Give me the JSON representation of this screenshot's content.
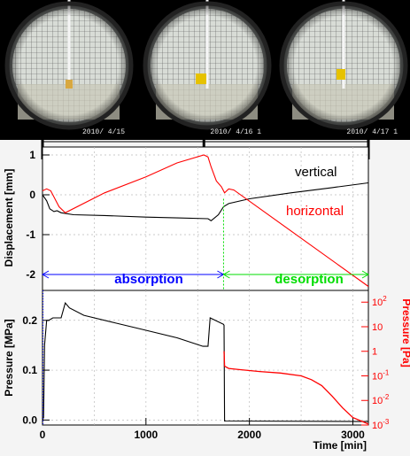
{
  "photos": [
    {
      "date": "2010/ 4/15"
    },
    {
      "date": "2010/ 4/16 1"
    },
    {
      "date": "2010/ 4/17 1"
    }
  ],
  "colors": {
    "vertical": "#000000",
    "horizontal": "#ff0000",
    "absorption": "#0000ff",
    "desorption": "#00dd00",
    "panel_bg": "#f4f4f4"
  },
  "chart_data": [
    {
      "type": "line",
      "ylabel": "Displacement [mm]",
      "ylim": [
        -2.4,
        1.2
      ],
      "xlim": [
        0,
        3150
      ],
      "yticks": [
        "1",
        "0",
        "-1",
        "-2"
      ],
      "grid": true,
      "series": [
        {
          "name": "vertical",
          "x": [
            0,
            40,
            70,
            110,
            140,
            180,
            300,
            600,
            1000,
            1300,
            1600,
            1630,
            1700,
            1750,
            1800,
            2000,
            2400,
            2800,
            3150
          ],
          "y": [
            0,
            -0.15,
            -0.35,
            -0.42,
            -0.4,
            -0.45,
            -0.5,
            -0.52,
            -0.56,
            -0.58,
            -0.6,
            -0.65,
            -0.5,
            -0.3,
            -0.22,
            -0.1,
            0.05,
            0.18,
            0.3
          ]
        },
        {
          "name": "horizontal",
          "x": [
            0,
            40,
            80,
            120,
            160,
            220,
            600,
            1000,
            1300,
            1560,
            1600,
            1630,
            1680,
            1730,
            1760,
            1800,
            1850,
            3150
          ],
          "y": [
            0.1,
            0.15,
            0.1,
            -0.1,
            -0.3,
            -0.45,
            0.05,
            0.45,
            0.8,
            1.0,
            0.95,
            0.7,
            0.35,
            0.2,
            0.05,
            0.15,
            0.12,
            -2.3
          ]
        }
      ],
      "annotations": [
        {
          "text": "absorption",
          "from": 0,
          "to": 1750,
          "y": -2.0
        },
        {
          "text": "desorption",
          "from": 1750,
          "to": 3150,
          "y": -2.0
        }
      ]
    },
    {
      "type": "line",
      "xlabel": "Time [min]",
      "ylabel": "Pressure [MPa]",
      "ylabel2": "Pressure [Pa]",
      "ylim": [
        -0.01,
        0.26
      ],
      "xlim": [
        0,
        3150
      ],
      "xticks": [
        "0",
        "1000",
        "2000",
        "3000"
      ],
      "yticks": [
        "0.2",
        "0.1",
        "0.0"
      ],
      "ylim2": [
        0.001,
        300
      ],
      "y2scale": "log",
      "yticks2": [
        "10^2",
        "10",
        "1",
        "10^-1",
        "10^-2",
        "10^-3"
      ],
      "grid": true,
      "series": [
        {
          "name": "pressure_mpa",
          "x": [
            0,
            10,
            20,
            40,
            60,
            100,
            180,
            220,
            260,
            400,
            700,
            1000,
            1300,
            1550,
            1600,
            1620,
            1750,
            1755,
            1760,
            3150
          ],
          "y": [
            0,
            0.005,
            0.15,
            0.2,
            0.2,
            0.205,
            0.205,
            0.235,
            0.225,
            0.21,
            0.195,
            0.18,
            0.165,
            0.148,
            0.148,
            0.205,
            0.192,
            0.19,
            -0.002,
            -0.003
          ]
        },
        {
          "name": "pressure_pa",
          "x": [
            1755,
            1760,
            1800,
            1900,
            2100,
            2300,
            2500,
            2600,
            2700,
            2800,
            2900,
            3000,
            3150
          ],
          "y": [
            1.0,
            0.25,
            0.2,
            0.18,
            0.15,
            0.13,
            0.1,
            0.07,
            0.04,
            0.015,
            0.005,
            0.002,
            0.0011
          ]
        }
      ]
    }
  ]
}
